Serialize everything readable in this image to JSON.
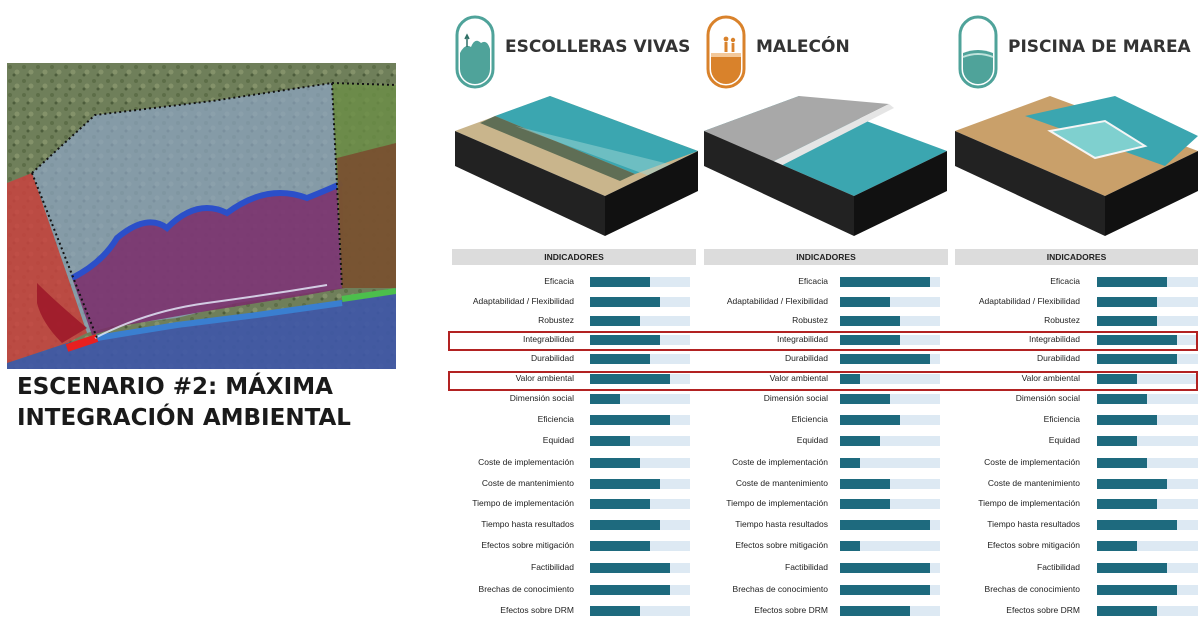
{
  "scenario": {
    "title_line1": "ESCENARIO #2: MÁXIMA",
    "title_line2": "INTEGRACIÓN AMBIENTAL"
  },
  "options": [
    {
      "name": "ESCOLLERAS VIVAS",
      "badge_color": "#4fa39a",
      "icon": "coastal-vegetation-icon"
    },
    {
      "name": "MALECÓN",
      "badge_color": "#d9822b",
      "icon": "people-on-promenade-icon"
    },
    {
      "name": "PISCINA DE MAREA",
      "badge_color": "#4fa39a",
      "icon": "tidal-pool-icon"
    }
  ],
  "panel_header": "INDICADORES",
  "highlighted_indicators": [
    "Integrabilidad",
    "Valor ambiental"
  ],
  "chart_data": [
    {
      "type": "bar",
      "title": "ESCOLLERAS VIVAS",
      "categories": [
        "Eficacia",
        "Adaptabilidad / Flexibilidad",
        "Robustez",
        "Integrabilidad",
        "Durabilidad",
        "Valor ambiental",
        "Dimensión social",
        "Eficiencia",
        "Equidad",
        "Coste de implementación",
        "Coste de mantenimiento",
        "Tiempo de implementación",
        "Tiempo hasta resultados",
        "Efectos sobre mitigación",
        "Factibilidad",
        "Brechas de conocimiento",
        "Efectos sobre DRM"
      ],
      "values": [
        0.6,
        0.7,
        0.5,
        0.7,
        0.6,
        0.8,
        0.3,
        0.8,
        0.4,
        0.5,
        0.7,
        0.6,
        0.7,
        0.6,
        0.8,
        0.8,
        0.5
      ],
      "ylim": [
        0,
        1
      ]
    },
    {
      "type": "bar",
      "title": "MALECÓN",
      "categories": [
        "Eficacia",
        "Adaptabilidad / Flexibilidad",
        "Robustez",
        "Integrabilidad",
        "Durabilidad",
        "Valor ambiental",
        "Dimensión social",
        "Eficiencia",
        "Equidad",
        "Coste de implementación",
        "Coste de mantenimiento",
        "Tiempo de implementación",
        "Tiempo hasta resultados",
        "Efectos sobre mitigación",
        "Factibilidad",
        "Brechas de conocimiento",
        "Efectos sobre DRM"
      ],
      "values": [
        0.9,
        0.5,
        0.6,
        0.6,
        0.9,
        0.2,
        0.5,
        0.6,
        0.4,
        0.2,
        0.5,
        0.5,
        0.9,
        0.2,
        0.9,
        0.9,
        0.7
      ],
      "ylim": [
        0,
        1
      ]
    },
    {
      "type": "bar",
      "title": "PISCINA DE MAREA",
      "categories": [
        "Eficacia",
        "Adaptabilidad / Flexibilidad",
        "Robustez",
        "Integrabilidad",
        "Durabilidad",
        "Valor ambiental",
        "Dimensión social",
        "Eficiencia",
        "Equidad",
        "Coste de implementación",
        "Coste de mantenimiento",
        "Tiempo de implementación",
        "Tiempo hasta resultados",
        "Efectos sobre mitigación",
        "Factibilidad",
        "Brechas de conocimiento",
        "Efectos sobre DRM"
      ],
      "values": [
        0.7,
        0.6,
        0.6,
        0.8,
        0.8,
        0.4,
        0.5,
        0.6,
        0.4,
        0.5,
        0.7,
        0.6,
        0.8,
        0.4,
        0.7,
        0.8,
        0.6
      ],
      "ylim": [
        0,
        1
      ]
    }
  ],
  "colors": {
    "bar_fill": "#1e6a7e",
    "bar_track": "#dde9f3",
    "highlight": "#b22222",
    "header_bg": "#dcdcdc"
  }
}
